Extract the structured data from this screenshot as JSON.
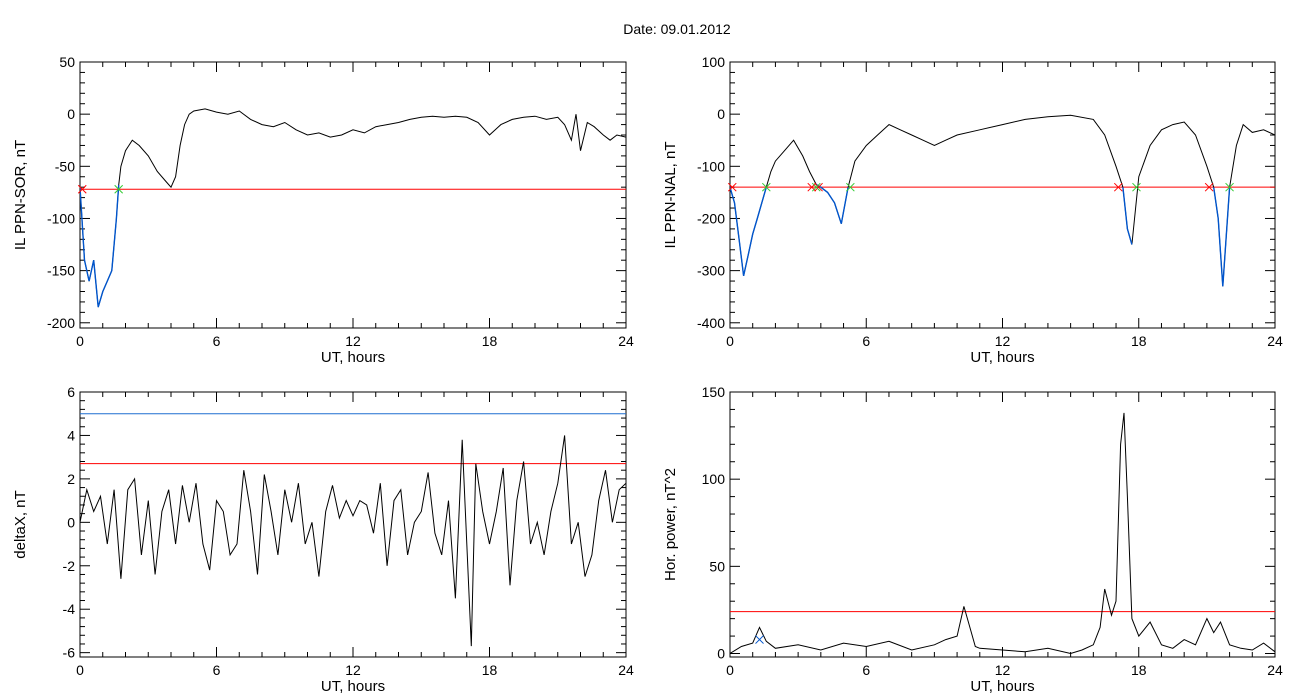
{
  "figure": {
    "title": "Date:  09.01.2012"
  },
  "colors": {
    "trace": "#000000",
    "threshold": "#ff0000",
    "highlight": "#0055cc",
    "upper_threshold": "#1f6fd0",
    "onset_marker": "#ff0000",
    "end_marker": "#33cc33"
  },
  "chart_data": [
    {
      "type": "line",
      "title": "",
      "xlabel": "UT, hours",
      "ylabel": "IL PPN-SOR, nT",
      "xlim": [
        0,
        24
      ],
      "ylim": [
        -205,
        50
      ],
      "xticks": [
        0,
        6,
        12,
        18,
        24
      ],
      "yticks": [
        50,
        0,
        -50,
        -100,
        -150,
        -200
      ],
      "x": [
        0,
        0.2,
        0.4,
        0.6,
        0.8,
        1.0,
        1.2,
        1.4,
        1.6,
        1.7,
        1.8,
        2.0,
        2.3,
        2.6,
        3.0,
        3.4,
        3.8,
        4.0,
        4.2,
        4.4,
        4.6,
        4.8,
        5.0,
        5.5,
        6,
        6.5,
        7,
        7.5,
        8,
        8.5,
        9,
        9.5,
        10,
        10.5,
        11,
        11.5,
        12,
        12.5,
        13,
        13.5,
        14,
        14.5,
        15,
        15.5,
        16,
        16.5,
        17,
        17.5,
        18,
        18.5,
        19,
        19.5,
        20,
        20.5,
        21,
        21.3,
        21.6,
        21.8,
        22,
        22.3,
        22.6,
        23,
        23.3,
        23.6,
        24
      ],
      "y": [
        -70,
        -140,
        -160,
        -140,
        -185,
        -170,
        -160,
        -150,
        -100,
        -68,
        -50,
        -35,
        -25,
        -30,
        -40,
        -55,
        -65,
        -70,
        -60,
        -30,
        -10,
        0,
        3,
        5,
        2,
        0,
        3,
        -5,
        -10,
        -12,
        -8,
        -15,
        -20,
        -18,
        -22,
        -20,
        -15,
        -18,
        -12,
        -10,
        -8,
        -5,
        -3,
        -2,
        -3,
        -2,
        -3,
        -8,
        -20,
        -10,
        -5,
        -3,
        -2,
        -5,
        -3,
        -10,
        -25,
        0,
        -35,
        -8,
        -12,
        -20,
        -25,
        -20,
        -22
      ],
      "highlight_x_range": [
        0,
        1.7
      ],
      "threshold": {
        "y": -72
      },
      "onset_markers": [
        {
          "x": 0.1,
          "y": -72
        }
      ],
      "end_markers": [
        {
          "x": 1.7,
          "y": -72
        }
      ]
    },
    {
      "type": "line",
      "title": "",
      "xlabel": "UT, hours",
      "ylabel": "IL PPN-NAL, nT",
      "xlim": [
        0,
        24
      ],
      "ylim": [
        -410,
        100
      ],
      "xticks": [
        0,
        6,
        12,
        18,
        24
      ],
      "yticks": [
        100,
        0,
        -100,
        -200,
        -300,
        -400
      ],
      "x": [
        0,
        0.2,
        0.4,
        0.6,
        0.8,
        1.0,
        1.2,
        1.4,
        1.6,
        1.8,
        2.0,
        2.4,
        2.8,
        3.2,
        3.5,
        3.8,
        4.0,
        4.3,
        4.6,
        4.9,
        5.2,
        5.5,
        6,
        6.5,
        7,
        7.5,
        8,
        8.5,
        9,
        9.5,
        10,
        11,
        12,
        13,
        14,
        15,
        16,
        16.5,
        17,
        17.3,
        17.5,
        17.7,
        18,
        18.5,
        19,
        19.5,
        20,
        20.5,
        21,
        21.3,
        21.5,
        21.7,
        22,
        22.3,
        22.6,
        23,
        23.5,
        24
      ],
      "y": [
        -140,
        -170,
        -240,
        -310,
        -270,
        -230,
        -200,
        -170,
        -140,
        -110,
        -90,
        -70,
        -50,
        -80,
        -110,
        -135,
        -140,
        -150,
        -170,
        -210,
        -140,
        -90,
        -60,
        -40,
        -20,
        -30,
        -40,
        -50,
        -60,
        -50,
        -40,
        -30,
        -20,
        -10,
        -5,
        -2,
        -10,
        -40,
        -100,
        -140,
        -220,
        -250,
        -120,
        -60,
        -30,
        -20,
        -15,
        -40,
        -100,
        -140,
        -200,
        -330,
        -140,
        -60,
        -20,
        -35,
        -30,
        -40
      ],
      "highlight_x_ranges": [
        [
          0,
          1.6
        ],
        [
          3.6,
          5.3
        ],
        [
          17.1,
          17.9
        ],
        [
          21.1,
          22.0
        ]
      ],
      "threshold": {
        "y": -140
      },
      "onset_markers": [
        {
          "x": 0.1,
          "y": -140
        },
        {
          "x": 3.6,
          "y": -140
        },
        {
          "x": 3.9,
          "y": -140
        },
        {
          "x": 17.1,
          "y": -140
        },
        {
          "x": 21.1,
          "y": -140
        }
      ],
      "end_markers": [
        {
          "x": 1.6,
          "y": -140
        },
        {
          "x": 3.8,
          "y": -140
        },
        {
          "x": 5.3,
          "y": -140
        },
        {
          "x": 17.9,
          "y": -140
        },
        {
          "x": 22.0,
          "y": -140
        }
      ]
    },
    {
      "type": "line",
      "title": "",
      "xlabel": "UT, hours",
      "ylabel": "deltaX, nT",
      "xlim": [
        0,
        24
      ],
      "ylim": [
        -6.2,
        6
      ],
      "xticks": [
        0,
        6,
        12,
        18,
        24
      ],
      "yticks": [
        6,
        4,
        2,
        0,
        -2,
        -4,
        -6
      ],
      "x": [
        0,
        0.3,
        0.6,
        0.9,
        1.2,
        1.5,
        1.8,
        2.1,
        2.4,
        2.7,
        3.0,
        3.3,
        3.6,
        3.9,
        4.2,
        4.5,
        4.8,
        5.1,
        5.4,
        5.7,
        6.0,
        6.3,
        6.6,
        6.9,
        7.2,
        7.5,
        7.8,
        8.1,
        8.4,
        8.7,
        9.0,
        9.3,
        9.6,
        9.9,
        10.2,
        10.5,
        10.8,
        11.1,
        11.4,
        11.7,
        12.0,
        12.3,
        12.6,
        12.9,
        13.2,
        13.5,
        13.8,
        14.1,
        14.4,
        14.7,
        15.0,
        15.3,
        15.6,
        15.9,
        16.2,
        16.5,
        16.8,
        17.0,
        17.2,
        17.4,
        17.7,
        18.0,
        18.3,
        18.6,
        18.9,
        19.2,
        19.5,
        19.8,
        20.1,
        20.4,
        20.7,
        21.0,
        21.3,
        21.6,
        21.9,
        22.2,
        22.5,
        22.8,
        23.1,
        23.4,
        23.7,
        24.0
      ],
      "y": [
        0,
        1.5,
        0.5,
        1.2,
        -1,
        1.5,
        -2.6,
        1.5,
        2,
        -1.5,
        1,
        -2.4,
        0.5,
        1.5,
        -1,
        1.7,
        0,
        1.8,
        -1,
        -2.2,
        1,
        0.5,
        -1.5,
        -1,
        2.4,
        0.5,
        -2.4,
        2.2,
        0.5,
        -1.5,
        1.5,
        0,
        1.8,
        -1,
        0,
        -2.5,
        0.5,
        1.7,
        0.2,
        1,
        0.3,
        1,
        0.8,
        -0.5,
        1.8,
        -2,
        1,
        1.5,
        -1.5,
        0,
        0.5,
        2.3,
        -0.5,
        -1.5,
        1,
        -3.5,
        3.8,
        -1,
        -5.7,
        2.7,
        0.5,
        -1,
        0.5,
        2.5,
        -2.9,
        1,
        2.8,
        -1,
        0,
        -1.5,
        0.5,
        1.8,
        4,
        -1,
        0,
        -2.5,
        -1.5,
        1,
        2.4,
        0,
        1.5,
        1.8
      ],
      "threshold": {
        "y": 2.7
      },
      "upper_threshold": {
        "y": 5
      }
    },
    {
      "type": "line",
      "title": "",
      "xlabel": "UT, hours",
      "ylabel": "Hor. power, nT^2",
      "xlim": [
        0,
        24
      ],
      "ylim": [
        -2,
        150
      ],
      "xticks": [
        0,
        6,
        12,
        18,
        24
      ],
      "yticks": [
        150,
        100,
        50,
        0
      ],
      "x": [
        0,
        0.5,
        1.0,
        1.3,
        1.6,
        2,
        3,
        4,
        5,
        6,
        7,
        8,
        9,
        9.5,
        10,
        10.3,
        10.5,
        10.8,
        11,
        12,
        13,
        14,
        15,
        15.5,
        16,
        16.3,
        16.5,
        16.8,
        17.0,
        17.2,
        17.35,
        17.5,
        17.7,
        18,
        18.5,
        19,
        19.5,
        20,
        20.5,
        21,
        21.3,
        21.6,
        22,
        22.5,
        23,
        23.5,
        24
      ],
      "y": [
        0,
        4,
        6,
        15,
        7,
        3,
        5,
        2,
        6,
        4,
        7,
        2,
        5,
        8,
        10,
        27,
        18,
        4,
        3,
        2,
        1,
        3,
        0,
        2,
        5,
        15,
        37,
        22,
        30,
        120,
        138,
        90,
        20,
        10,
        18,
        5,
        3,
        8,
        5,
        20,
        12,
        18,
        5,
        3,
        2,
        6,
        1
      ],
      "threshold": {
        "y": 24
      },
      "onset_markers": [
        {
          "x": 1.3,
          "y": 8
        }
      ]
    }
  ]
}
